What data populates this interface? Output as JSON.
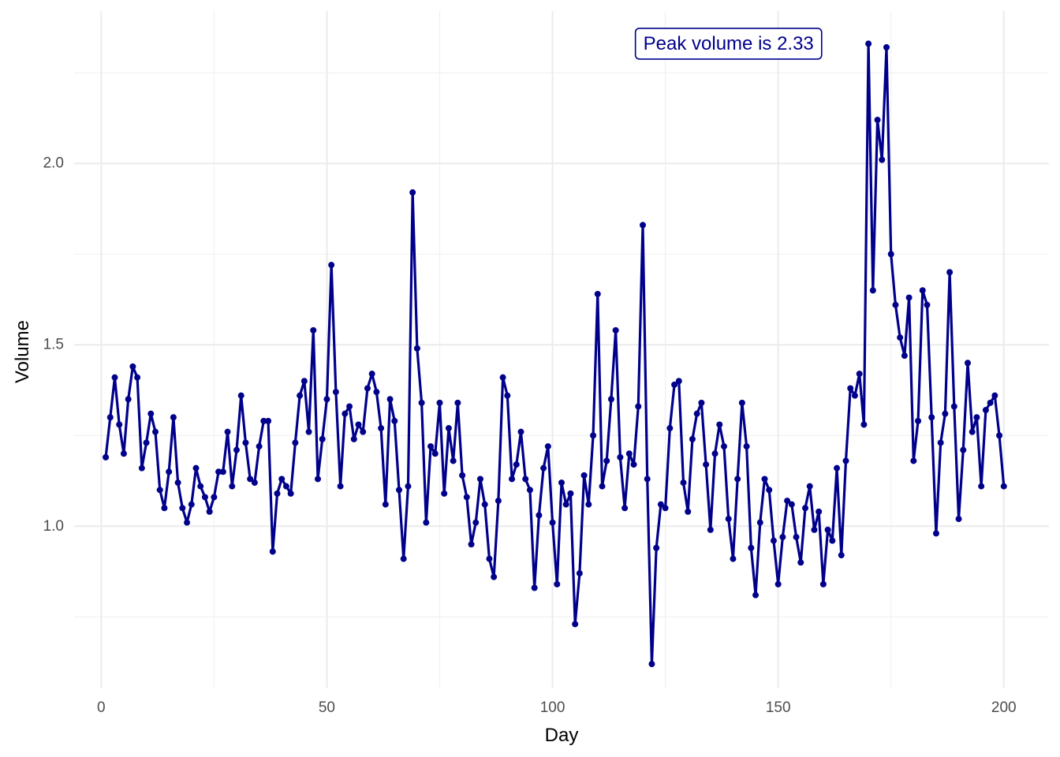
{
  "chart_data": {
    "type": "line",
    "title": "",
    "xlabel": "Day",
    "ylabel": "Volume",
    "xlim": [
      -6,
      210
    ],
    "ylim": [
      0.555,
      2.42
    ],
    "x_ticks": [
      0,
      50,
      100,
      150,
      200
    ],
    "y_ticks": [
      1.0,
      1.5,
      2.0
    ],
    "x_tick_labels": [
      "0",
      "50",
      "100",
      "150",
      "200"
    ],
    "y_tick_labels": [
      "1.0",
      "1.5",
      "2.0"
    ],
    "grid": true,
    "legend": "none",
    "line_color": "#00008B",
    "annotation": {
      "text": "Peak volume is 2.33",
      "x": 139,
      "y": 2.33
    },
    "series": [
      {
        "x": [
          1,
          2,
          3,
          4,
          5,
          6,
          7,
          8,
          9,
          10,
          11,
          12,
          13,
          14,
          15,
          16,
          17,
          18,
          19,
          20,
          21,
          22,
          23,
          24,
          25,
          26,
          27,
          28,
          29,
          30,
          31,
          32,
          33,
          34,
          35,
          36,
          37,
          38,
          39,
          40,
          41,
          42,
          43,
          44,
          45,
          46,
          47,
          48,
          49,
          50,
          51,
          52,
          53,
          54,
          55,
          56,
          57,
          58,
          59,
          60,
          61,
          62,
          63,
          64,
          65,
          66,
          67,
          68,
          69,
          70,
          71,
          72,
          73,
          74,
          75,
          76,
          77,
          78,
          79,
          80,
          81,
          82,
          83,
          84,
          85,
          86,
          87,
          88,
          89,
          90,
          91,
          92,
          93,
          94,
          95,
          96,
          97,
          98,
          99,
          100,
          101,
          102,
          103,
          104,
          105,
          106,
          107,
          108,
          109,
          110,
          111,
          112,
          113,
          114,
          115,
          116,
          117,
          118,
          119,
          120,
          121,
          122,
          123,
          124,
          125,
          126,
          127,
          128,
          129,
          130,
          131,
          132,
          133,
          134,
          135,
          136,
          137,
          138,
          139,
          140,
          141,
          142,
          143,
          144,
          145,
          146,
          147,
          148,
          149,
          150,
          151,
          152,
          153,
          154,
          155,
          156,
          157,
          158,
          159,
          160,
          161,
          162,
          163,
          164,
          165,
          166,
          167,
          168,
          169,
          170,
          171,
          172,
          173,
          174,
          175,
          176,
          177,
          178,
          179,
          180,
          181,
          182,
          183,
          184,
          185,
          186,
          187,
          188,
          189,
          190,
          191,
          192,
          193,
          194,
          195,
          196,
          197,
          198,
          199,
          200
        ],
        "values": [
          1.19,
          1.3,
          1.41,
          1.28,
          1.2,
          1.35,
          1.44,
          1.41,
          1.16,
          1.23,
          1.31,
          1.26,
          1.1,
          1.05,
          1.15,
          1.3,
          1.12,
          1.05,
          1.01,
          1.06,
          1.16,
          1.11,
          1.08,
          1.04,
          1.08,
          1.15,
          1.15,
          1.26,
          1.11,
          1.21,
          1.36,
          1.23,
          1.13,
          1.12,
          1.22,
          1.29,
          1.29,
          0.93,
          1.09,
          1.13,
          1.11,
          1.09,
          1.23,
          1.36,
          1.4,
          1.26,
          1.54,
          1.13,
          1.24,
          1.35,
          1.72,
          1.37,
          1.11,
          1.31,
          1.33,
          1.24,
          1.28,
          1.26,
          1.38,
          1.42,
          1.37,
          1.27,
          1.06,
          1.35,
          1.29,
          1.1,
          0.91,
          1.11,
          1.92,
          1.49,
          1.34,
          1.01,
          1.22,
          1.2,
          1.34,
          1.09,
          1.27,
          1.18,
          1.34,
          1.14,
          1.08,
          0.95,
          1.01,
          1.13,
          1.06,
          0.91,
          0.86,
          1.07,
          1.41,
          1.36,
          1.13,
          1.17,
          1.26,
          1.13,
          1.1,
          0.83,
          1.03,
          1.16,
          1.22,
          1.01,
          0.84,
          1.12,
          1.06,
          1.09,
          0.73,
          0.87,
          1.14,
          1.06,
          1.25,
          1.64,
          1.11,
          1.18,
          1.35,
          1.54,
          1.19,
          1.05,
          1.2,
          1.17,
          1.33,
          1.83,
          1.13,
          0.62,
          0.94,
          1.06,
          1.05,
          1.27,
          1.39,
          1.4,
          1.12,
          1.04,
          1.24,
          1.31,
          1.34,
          1.17,
          0.99,
          1.2,
          1.28,
          1.22,
          1.02,
          0.91,
          1.13,
          1.34,
          1.22,
          0.94,
          0.81,
          1.01,
          1.13,
          1.1,
          0.96,
          0.84,
          0.97,
          1.07,
          1.06,
          0.97,
          0.9,
          1.05,
          1.11,
          0.99,
          1.04,
          0.84,
          0.99,
          0.96,
          1.16,
          0.92,
          1.18,
          1.38,
          1.36,
          1.42,
          1.28,
          2.33,
          1.65,
          2.12,
          2.01,
          2.32,
          1.75,
          1.61,
          1.52,
          1.47,
          1.63,
          1.18,
          1.29,
          1.65,
          1.61,
          1.3,
          0.98,
          1.23,
          1.31,
          1.7,
          1.33,
          1.02,
          1.21,
          1.45,
          1.26,
          1.3,
          1.11,
          1.32,
          1.34,
          1.36,
          1.25,
          1.11
        ]
      }
    ]
  }
}
